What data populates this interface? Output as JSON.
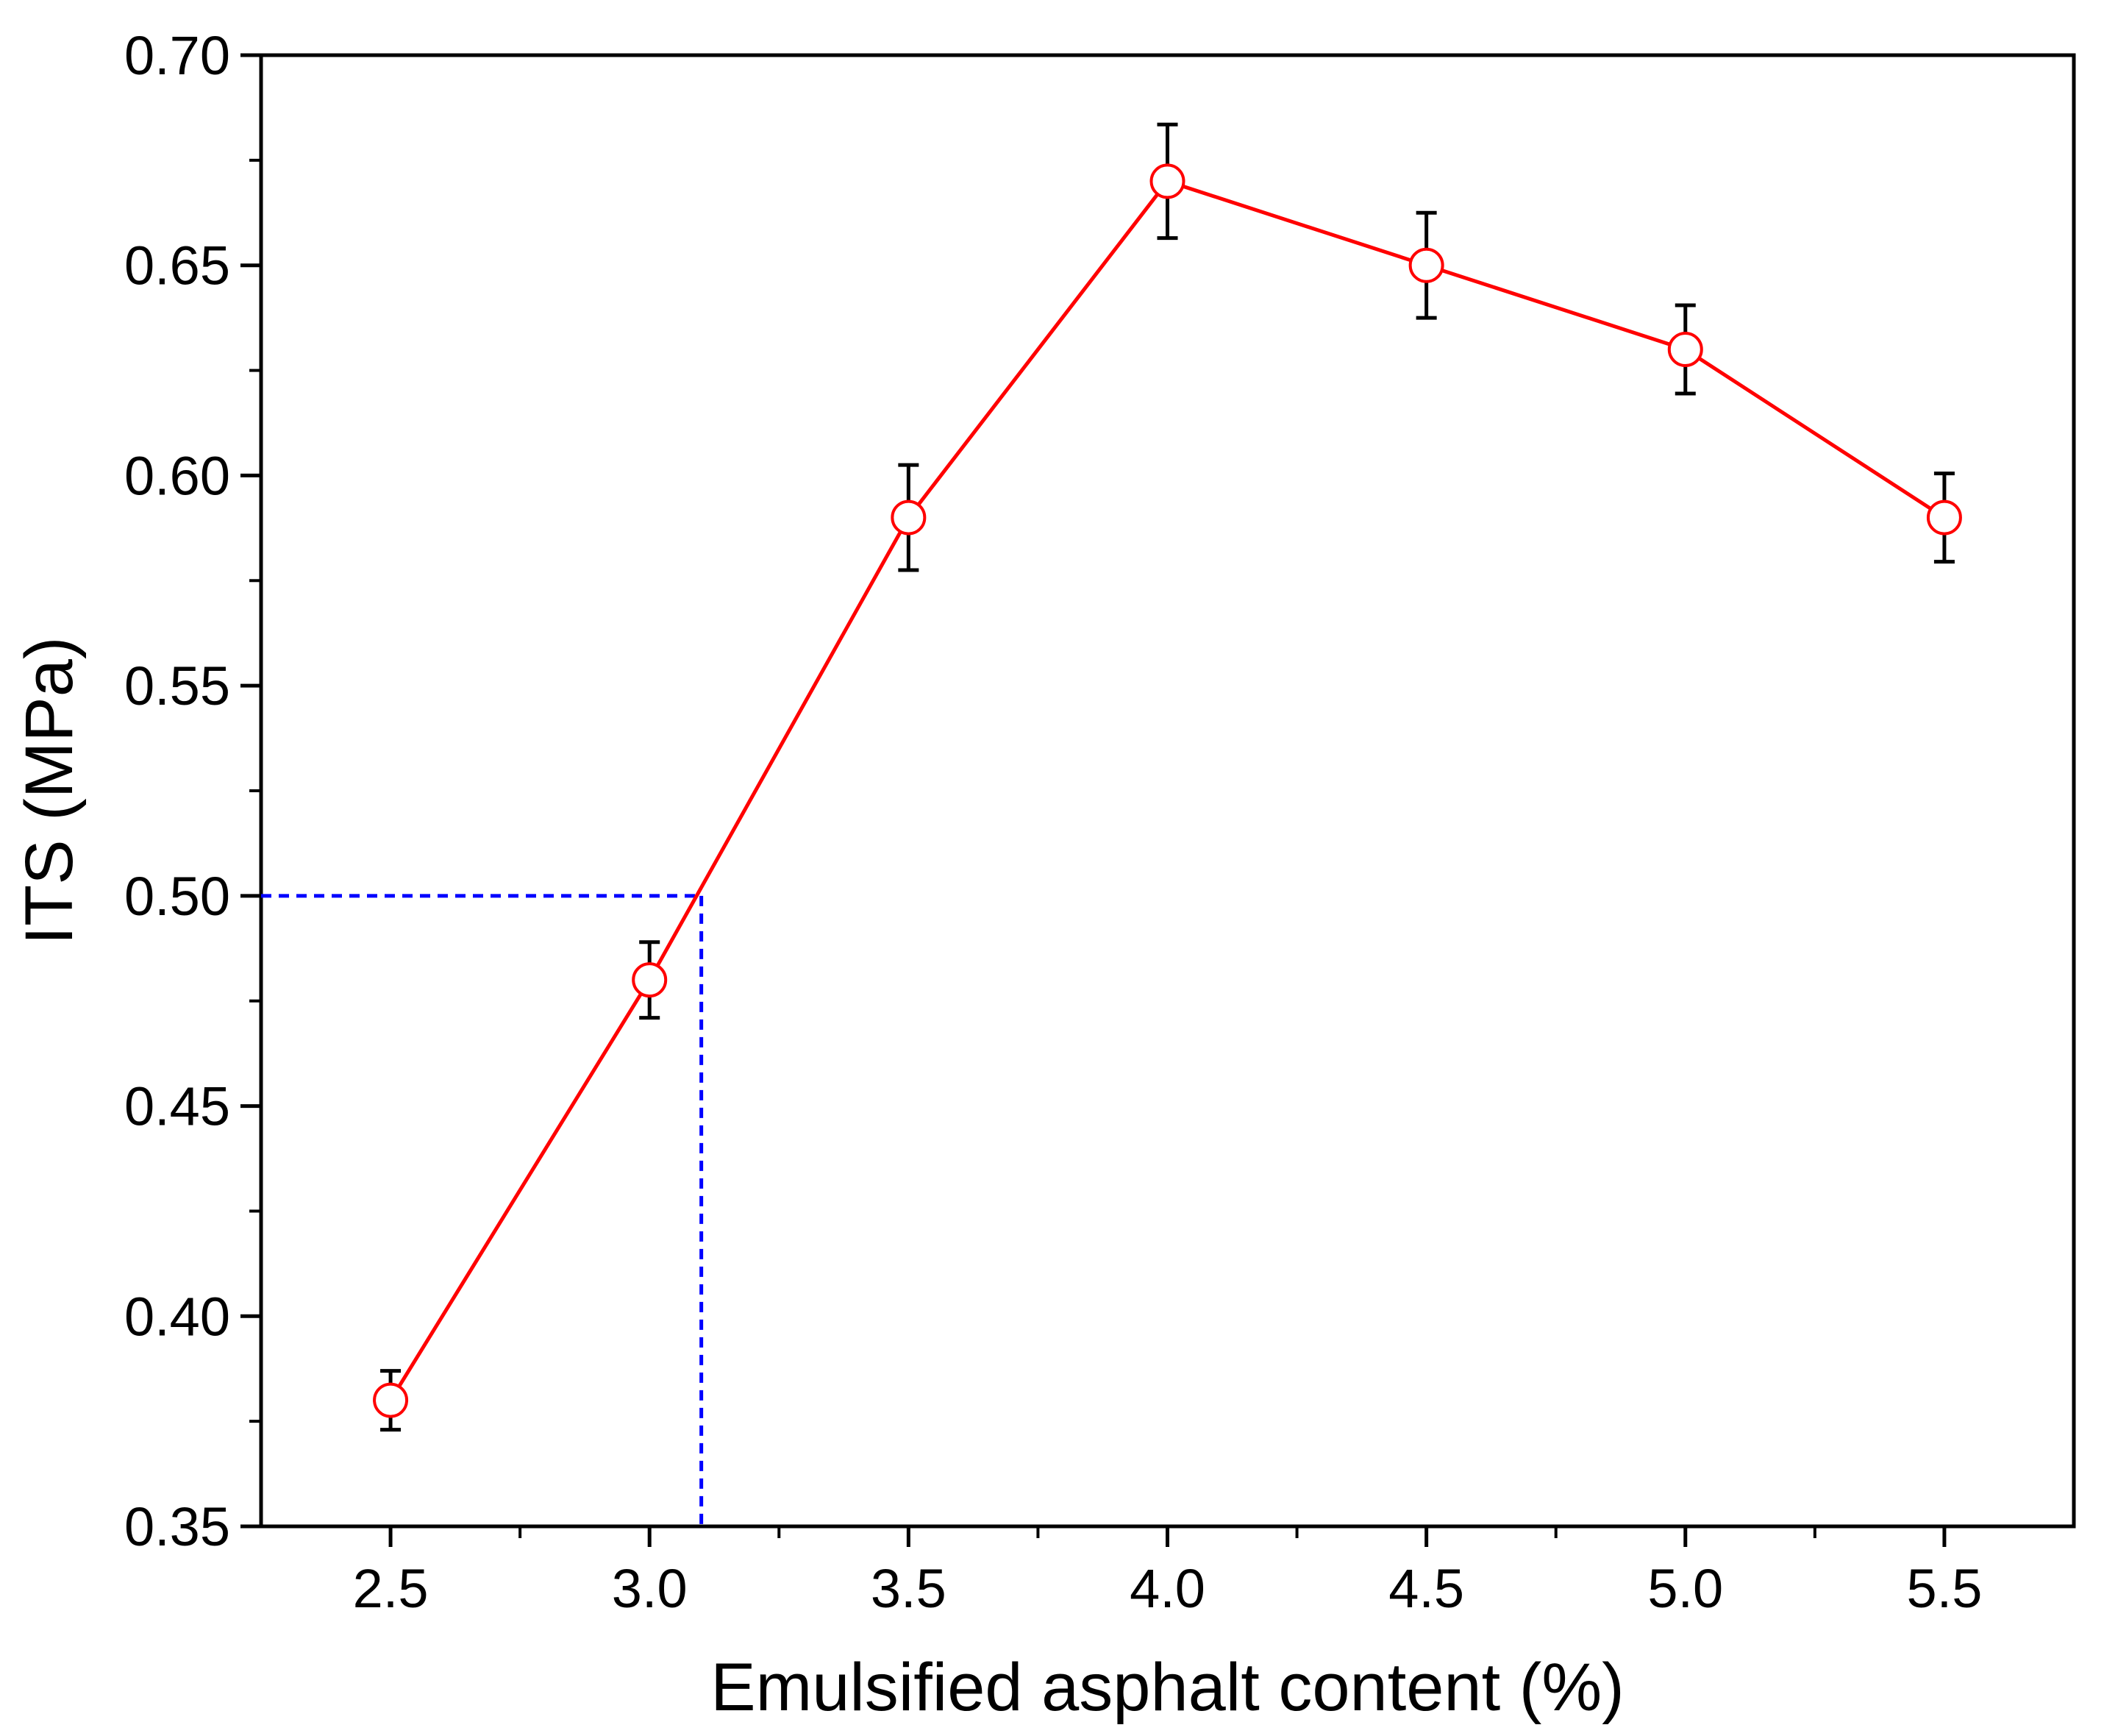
{
  "chart_data": {
    "type": "line",
    "title": "",
    "xlabel": "Emulsified asphalt content (%)",
    "ylabel": "ITS (MPa)",
    "xlim": [
      2.25,
      5.75
    ],
    "ylim": [
      0.35,
      0.7
    ],
    "x_ticks": [
      2.5,
      3.0,
      3.5,
      4.0,
      4.5,
      5.0,
      5.5
    ],
    "x_tick_labels": [
      "2.5",
      "3.0",
      "3.5",
      "4.0",
      "4.5",
      "5.0",
      "5.5"
    ],
    "x_minor_ticks": [
      2.75,
      3.25,
      3.75,
      4.25,
      4.75,
      5.25
    ],
    "y_ticks": [
      0.35,
      0.4,
      0.45,
      0.5,
      0.55,
      0.6,
      0.65,
      0.7
    ],
    "y_tick_labels": [
      "0.35",
      "0.40",
      "0.45",
      "0.50",
      "0.55",
      "0.60",
      "0.65",
      "0.70"
    ],
    "y_minor_ticks": [
      0.375,
      0.425,
      0.475,
      0.525,
      0.575,
      0.625,
      0.675
    ],
    "grid": false,
    "series": [
      {
        "x": [
          2.5,
          3.0,
          3.5,
          4.0,
          4.5,
          5.0,
          5.5
        ],
        "y": [
          0.38,
          0.48,
          0.59,
          0.67,
          0.65,
          0.63,
          0.59
        ],
        "error": [
          0.007,
          0.009,
          0.0125,
          0.0135,
          0.0125,
          0.0105,
          0.0105
        ],
        "color": "#ff0000",
        "marker": "open-circle"
      }
    ],
    "reference_lines": {
      "color": "#0000ff",
      "style": "dashed",
      "y_value": 0.5,
      "x_value": 3.1
    },
    "error_bar_color": "#000000"
  }
}
